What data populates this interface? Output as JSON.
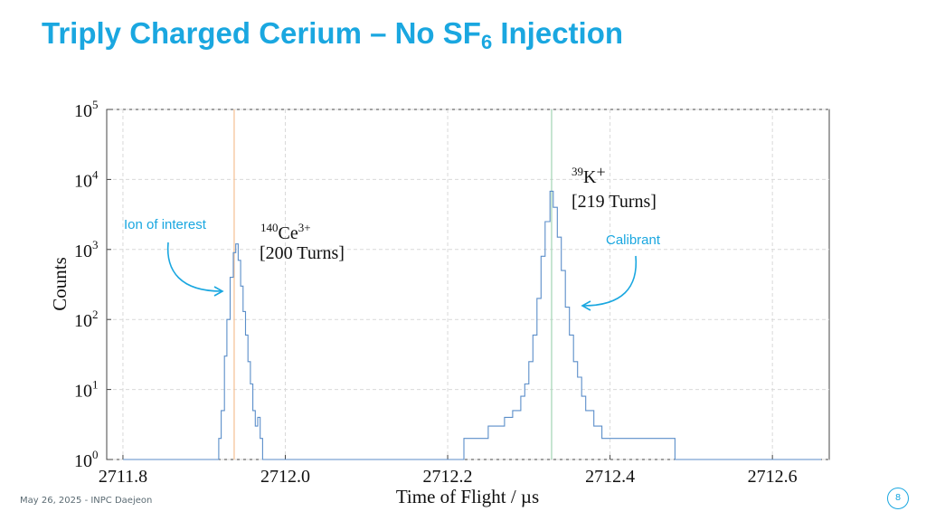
{
  "slide": {
    "title_main": "Triply Charged Cerium – No SF",
    "title_sub": "6",
    "title_end": " Injection",
    "footer": "May 26, 2025 - INPC Daejeon",
    "page_number": "8"
  },
  "colors": {
    "title": "#1aa7e0",
    "histogram": "#5b8ec9",
    "ion_line": "#f6c49a",
    "calibrant_line": "#a8d8b9",
    "annotation": "#1aa7e0"
  },
  "chart_data": {
    "type": "line",
    "xlabel": "Time of Flight / µs",
    "ylabel": "Counts",
    "yscale": "log",
    "xlim": [
      2711.78,
      2712.67
    ],
    "ylim": [
      1,
      100000
    ],
    "grid": true,
    "xticks": [
      2711.8,
      2712.0,
      2712.2,
      2712.4,
      2712.6
    ],
    "xtick_labels": [
      "2711.8",
      "2712.0",
      "2712.2",
      "2712.4",
      "2712.6"
    ],
    "yticks": [
      1,
      10,
      100,
      1000,
      10000,
      100000
    ],
    "ytick_labels": [
      {
        "base": "10",
        "exp": "0"
      },
      {
        "base": "10",
        "exp": "1"
      },
      {
        "base": "10",
        "exp": "2"
      },
      {
        "base": "10",
        "exp": "3"
      },
      {
        "base": "10",
        "exp": "4"
      },
      {
        "base": "10",
        "exp": "5"
      }
    ],
    "vlines": [
      {
        "x": 2711.937,
        "color": "#f6c49a"
      },
      {
        "x": 2712.328,
        "color": "#a8d8b9"
      }
    ],
    "peaks": [
      {
        "species_sup": "140",
        "species": "Ce",
        "charge_sup": "3+",
        "turns": "[200 Turns]",
        "center": 2711.94,
        "height": 1200
      },
      {
        "species_sup": "39",
        "species": "K",
        "charge": "+",
        "turns": "[219 Turns]",
        "center": 2712.326,
        "height": 6800
      }
    ],
    "annotations": [
      {
        "text": "Ion of interest",
        "points_to": 2711.94
      },
      {
        "text": "Calibrant",
        "points_to": 2712.34
      }
    ],
    "series": [
      {
        "values": [
          [
            2711.8,
            1
          ],
          [
            2711.86,
            1
          ],
          [
            2711.905,
            1
          ],
          [
            2711.912,
            1
          ],
          [
            2711.918,
            2
          ],
          [
            2711.921,
            5
          ],
          [
            2711.925,
            30
          ],
          [
            2711.928,
            100
          ],
          [
            2711.932,
            400
          ],
          [
            2711.936,
            900
          ],
          [
            2711.939,
            1200
          ],
          [
            2711.942,
            700
          ],
          [
            2711.945,
            300
          ],
          [
            2711.948,
            130
          ],
          [
            2711.951,
            60
          ],
          [
            2711.954,
            25
          ],
          [
            2711.957,
            12
          ],
          [
            2711.96,
            5
          ],
          [
            2711.963,
            3
          ],
          [
            2711.966,
            4
          ],
          [
            2711.969,
            2
          ],
          [
            2711.972,
            1
          ],
          [
            2711.98,
            1
          ],
          [
            2712.02,
            1
          ],
          [
            2712.05,
            1
          ],
          [
            2712.08,
            1
          ],
          [
            2712.11,
            1
          ],
          [
            2712.14,
            1
          ],
          [
            2712.16,
            1
          ],
          [
            2712.18,
            1
          ],
          [
            2712.2,
            1
          ],
          [
            2712.22,
            2
          ],
          [
            2712.24,
            2
          ],
          [
            2712.25,
            3
          ],
          [
            2712.26,
            3
          ],
          [
            2712.27,
            4
          ],
          [
            2712.28,
            5
          ],
          [
            2712.29,
            8
          ],
          [
            2712.295,
            12
          ],
          [
            2712.3,
            25
          ],
          [
            2712.305,
            60
          ],
          [
            2712.31,
            200
          ],
          [
            2712.315,
            800
          ],
          [
            2712.32,
            2500
          ],
          [
            2712.326,
            6800
          ],
          [
            2712.33,
            4000
          ],
          [
            2712.335,
            1500
          ],
          [
            2712.34,
            500
          ],
          [
            2712.345,
            150
          ],
          [
            2712.35,
            60
          ],
          [
            2712.355,
            25
          ],
          [
            2712.36,
            15
          ],
          [
            2712.365,
            8
          ],
          [
            2712.37,
            5
          ],
          [
            2712.38,
            3
          ],
          [
            2712.39,
            2
          ],
          [
            2712.41,
            2
          ],
          [
            2712.43,
            2
          ],
          [
            2712.45,
            2
          ],
          [
            2712.48,
            1
          ],
          [
            2712.52,
            1
          ],
          [
            2712.56,
            1
          ],
          [
            2712.6,
            1
          ],
          [
            2712.64,
            1
          ],
          [
            2712.66,
            1
          ]
        ]
      }
    ]
  }
}
